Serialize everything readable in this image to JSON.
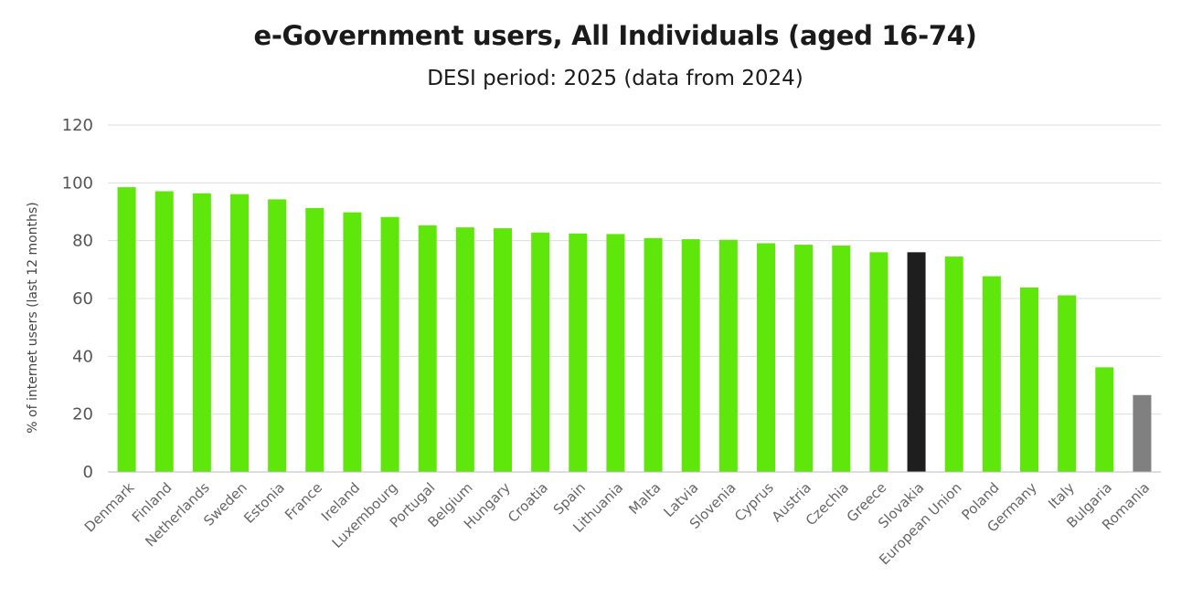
{
  "chart_data": {
    "type": "bar",
    "title": "e-Government users, All Individuals (aged 16-74)",
    "subtitle": "DESI period: 2025 (data from 2024)",
    "ylabel": "% of internet users (last 12 months)",
    "xlabel": "",
    "ylim": [
      0,
      120
    ],
    "yticks": [
      0,
      20,
      40,
      60,
      80,
      100,
      120
    ],
    "grid": true,
    "categories": [
      "Denmark",
      "Finland",
      "Netherlands",
      "Sweden",
      "Estonia",
      "France",
      "Ireland",
      "Luxembourg",
      "Portugal",
      "Belgium",
      "Hungary",
      "Croatia",
      "Spain",
      "Lithuania",
      "Malta",
      "Latvia",
      "Slovenia",
      "Cyprus",
      "Austria",
      "Czechia",
      "Greece",
      "Slovakia",
      "European Union",
      "Poland",
      "Germany",
      "Italy",
      "Bulgaria",
      "Romania"
    ],
    "values": [
      98.5,
      97.1,
      96.4,
      96.1,
      94.3,
      91.3,
      89.8,
      88.2,
      85.3,
      84.6,
      84.3,
      82.8,
      82.5,
      82.3,
      80.9,
      80.5,
      80.3,
      79.1,
      78.6,
      78.3,
      76.0,
      76.0,
      74.5,
      67.7,
      63.8,
      61.1,
      36.2,
      26.6
    ],
    "colors": {
      "default": "#5fe60a",
      "highlight": "#1e1e1e",
      "muted": "#808080",
      "grid": "#dddddd",
      "axis": "#bbbbbb"
    },
    "highlight": "Slovakia",
    "muted": "Romania"
  }
}
